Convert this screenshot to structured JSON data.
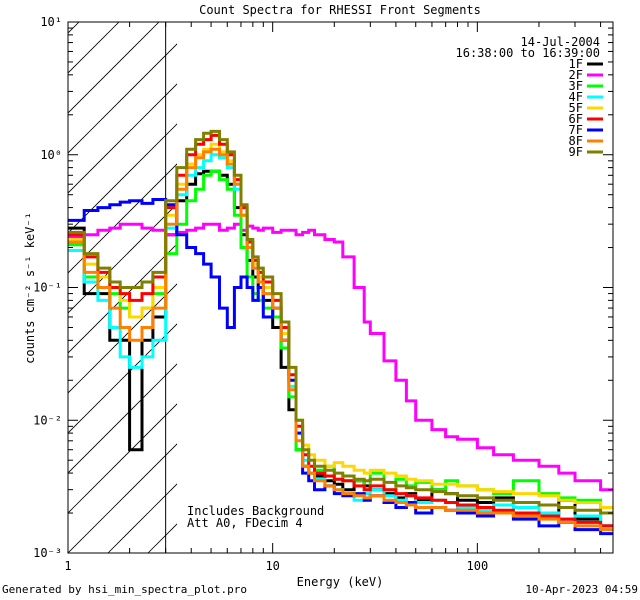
{
  "chart_data": {
    "type": "line",
    "title": "Count Spectra for RHESSI Front Segments",
    "xlabel": "Energy (keV)",
    "ylabel": "counts cm⁻² s⁻¹ keV⁻¹",
    "xscale": "log",
    "yscale": "log",
    "xlim": [
      1,
      460
    ],
    "ylim": [
      0.001,
      10
    ],
    "x_ticks": [
      {
        "value": 1,
        "label": "1"
      },
      {
        "value": 10,
        "label": "10"
      },
      {
        "value": 100,
        "label": "100"
      }
    ],
    "y_ticks": [
      {
        "value": 10,
        "label": "10¹"
      },
      {
        "value": 1,
        "label": "10⁰"
      },
      {
        "value": 0.1,
        "label": "10⁻¹"
      },
      {
        "value": 0.01,
        "label": "10⁻²"
      },
      {
        "value": 0.001,
        "label": "10⁻³"
      }
    ],
    "legend_position": "top-right",
    "date": "14-Jul-2004",
    "time_range": "16:38:00 to 16:39:00",
    "shaded_region": {
      "from": 1,
      "to": 3,
      "pattern": "diagonal-hatch"
    },
    "annotations": [
      "Includes Background",
      "Att A0, FDecim 4"
    ],
    "x": [
      1.0,
      1.2,
      1.4,
      1.6,
      1.8,
      2.0,
      2.3,
      2.6,
      3.0,
      3.4,
      3.8,
      4.2,
      4.6,
      5.0,
      5.5,
      6.0,
      6.5,
      7.0,
      7.5,
      8.0,
      8.5,
      9.0,
      10.0,
      11.0,
      12.0,
      13.0,
      14.0,
      15.0,
      16.0,
      18.0,
      20.0,
      22.0,
      25.0,
      28.0,
      30.0,
      35.0,
      40.0,
      45.0,
      50.0,
      60.0,
      70.0,
      80.0,
      100.0,
      120.0,
      150.0,
      200.0,
      250.0,
      300.0,
      400.0
    ],
    "series": [
      {
        "name": "1F",
        "color": "#000000",
        "values": [
          0.28,
          0.09,
          0.09,
          0.04,
          0.04,
          0.006,
          0.04,
          0.06,
          0.25,
          0.45,
          0.6,
          0.72,
          0.75,
          0.75,
          0.7,
          0.6,
          0.4,
          0.25,
          0.16,
          0.12,
          0.1,
          0.08,
          0.05,
          0.025,
          0.012,
          0.006,
          0.0045,
          0.004,
          0.0038,
          0.0035,
          0.0033,
          0.003,
          0.0035,
          0.0032,
          0.003,
          0.0028,
          0.0026,
          0.0028,
          0.0025,
          0.003,
          0.0028,
          0.0025,
          0.0024,
          0.0026,
          0.0024,
          0.002,
          0.0025,
          0.0018,
          0.0016
        ]
      },
      {
        "name": "2F",
        "color": "#ff00ff",
        "values": [
          0.24,
          0.25,
          0.27,
          0.28,
          0.3,
          0.3,
          0.28,
          0.27,
          0.25,
          0.26,
          0.27,
          0.28,
          0.3,
          0.3,
          0.27,
          0.28,
          0.3,
          0.27,
          0.29,
          0.28,
          0.27,
          0.28,
          0.26,
          0.27,
          0.27,
          0.25,
          0.26,
          0.27,
          0.25,
          0.23,
          0.22,
          0.17,
          0.1,
          0.055,
          0.045,
          0.028,
          0.02,
          0.014,
          0.01,
          0.0085,
          0.0075,
          0.0072,
          0.0062,
          0.0055,
          0.005,
          0.0045,
          0.004,
          0.0035,
          0.003
        ]
      },
      {
        "name": "3F",
        "color": "#00ff00",
        "values": [
          0.21,
          0.12,
          0.1,
          0.09,
          0.07,
          0.06,
          0.07,
          0.09,
          0.18,
          0.3,
          0.45,
          0.55,
          0.7,
          0.75,
          0.65,
          0.55,
          0.35,
          0.2,
          0.12,
          0.09,
          0.08,
          0.07,
          0.06,
          0.035,
          0.015,
          0.006,
          0.0045,
          0.004,
          0.0042,
          0.0045,
          0.0036,
          0.0035,
          0.0035,
          0.003,
          0.004,
          0.003,
          0.0036,
          0.0032,
          0.0034,
          0.003,
          0.0035,
          0.0032,
          0.003,
          0.0028,
          0.0035,
          0.0028,
          0.0026,
          0.0025,
          0.0022
        ]
      },
      {
        "name": "4F",
        "color": "#00ffff",
        "values": [
          0.19,
          0.11,
          0.08,
          0.05,
          0.03,
          0.025,
          0.03,
          0.04,
          0.28,
          0.5,
          0.7,
          0.8,
          0.9,
          1.0,
          0.95,
          0.8,
          0.55,
          0.35,
          0.2,
          0.14,
          0.11,
          0.09,
          0.07,
          0.04,
          0.018,
          0.008,
          0.005,
          0.004,
          0.0036,
          0.0032,
          0.003,
          0.0028,
          0.0025,
          0.0028,
          0.003,
          0.0027,
          0.0025,
          0.0027,
          0.0024,
          0.0025,
          0.0024,
          0.0022,
          0.0021,
          0.0023,
          0.0022,
          0.002,
          0.0018,
          0.0019,
          0.0016
        ]
      },
      {
        "name": "5F",
        "color": "#ffd700",
        "values": [
          0.23,
          0.15,
          0.12,
          0.1,
          0.08,
          0.06,
          0.07,
          0.1,
          0.35,
          0.6,
          0.85,
          1.0,
          1.1,
          1.2,
          1.05,
          0.9,
          0.6,
          0.35,
          0.2,
          0.15,
          0.12,
          0.1,
          0.08,
          0.045,
          0.02,
          0.01,
          0.0065,
          0.0055,
          0.005,
          0.0045,
          0.0048,
          0.0045,
          0.0042,
          0.004,
          0.0042,
          0.004,
          0.0038,
          0.0036,
          0.0035,
          0.0033,
          0.0033,
          0.0032,
          0.003,
          0.0029,
          0.0028,
          0.0027,
          0.0025,
          0.0024,
          0.0022
        ]
      },
      {
        "name": "6F",
        "color": "#ff0000",
        "values": [
          0.25,
          0.17,
          0.13,
          0.1,
          0.09,
          0.08,
          0.09,
          0.12,
          0.4,
          0.7,
          1.0,
          1.2,
          1.3,
          1.4,
          1.2,
          1.0,
          0.65,
          0.4,
          0.22,
          0.16,
          0.13,
          0.11,
          0.08,
          0.05,
          0.022,
          0.009,
          0.0055,
          0.0045,
          0.004,
          0.0038,
          0.0036,
          0.0035,
          0.0032,
          0.003,
          0.0032,
          0.003,
          0.0028,
          0.0027,
          0.0026,
          0.0025,
          0.0024,
          0.0023,
          0.0022,
          0.0021,
          0.002,
          0.0019,
          0.0018,
          0.0017,
          0.0016
        ]
      },
      {
        "name": "7F",
        "color": "#0000ff",
        "values": [
          0.32,
          0.38,
          0.4,
          0.42,
          0.44,
          0.45,
          0.43,
          0.46,
          0.42,
          0.25,
          0.2,
          0.18,
          0.15,
          0.12,
          0.07,
          0.05,
          0.1,
          0.12,
          0.1,
          0.08,
          0.1,
          0.06,
          0.07,
          0.04,
          0.02,
          0.008,
          0.004,
          0.0035,
          0.003,
          0.0032,
          0.0028,
          0.0027,
          0.0028,
          0.0025,
          0.0027,
          0.0024,
          0.0022,
          0.0024,
          0.002,
          0.0022,
          0.0021,
          0.002,
          0.0019,
          0.002,
          0.0018,
          0.0016,
          0.0017,
          0.0015,
          0.0014
        ]
      },
      {
        "name": "8F",
        "color": "#ff8000",
        "values": [
          0.22,
          0.13,
          0.1,
          0.07,
          0.05,
          0.04,
          0.05,
          0.07,
          0.3,
          0.55,
          0.8,
          0.95,
          1.05,
          1.1,
          1.0,
          0.85,
          0.6,
          0.35,
          0.2,
          0.14,
          0.11,
          0.09,
          0.07,
          0.04,
          0.017,
          0.007,
          0.0045,
          0.004,
          0.0035,
          0.0032,
          0.003,
          0.0028,
          0.0027,
          0.0026,
          0.0027,
          0.0025,
          0.0024,
          0.0023,
          0.0022,
          0.0022,
          0.0021,
          0.0021,
          0.002,
          0.002,
          0.0019,
          0.0018,
          0.0017,
          0.0016,
          0.0015
        ]
      },
      {
        "name": "9F",
        "color": "#808000",
        "values": [
          0.26,
          0.18,
          0.14,
          0.11,
          0.1,
          0.1,
          0.11,
          0.13,
          0.45,
          0.8,
          1.1,
          1.3,
          1.45,
          1.5,
          1.3,
          1.05,
          0.7,
          0.42,
          0.23,
          0.17,
          0.14,
          0.12,
          0.09,
          0.055,
          0.025,
          0.01,
          0.006,
          0.005,
          0.0045,
          0.0042,
          0.004,
          0.0038,
          0.0036,
          0.0035,
          0.0036,
          0.0034,
          0.0032,
          0.0031,
          0.003,
          0.0029,
          0.0028,
          0.0027,
          0.0026,
          0.0025,
          0.0024,
          0.0023,
          0.0022,
          0.0021,
          0.002
        ]
      }
    ]
  },
  "footer": {
    "left": "Generated by hsi_min_spectra_plot.pro",
    "right": "10-Apr-2023 04:59"
  }
}
